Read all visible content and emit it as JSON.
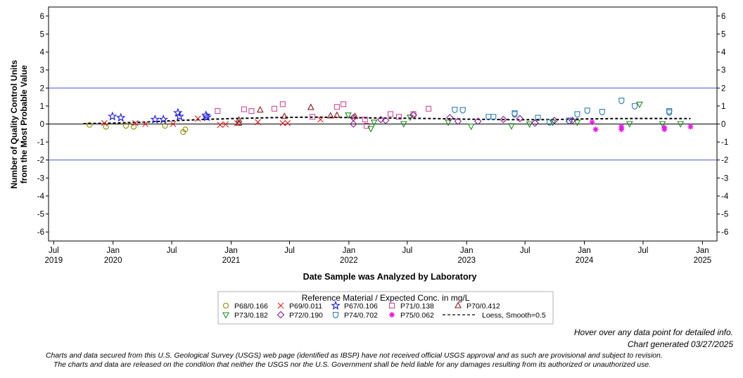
{
  "chart_data": {
    "type": "scatter",
    "ylabel_line1": "Number of Quality Control Units",
    "ylabel_line2": "from the Most Probable Value",
    "xlabel": "Date Sample was Analyzed by Laboratory",
    "ylim": [
      -6.5,
      6.5
    ],
    "yticks": [
      -6,
      -5,
      -4,
      -3,
      -2,
      -1,
      0,
      1,
      2,
      3,
      4,
      5,
      6
    ],
    "xlim": [
      "2019-06-15",
      "2025-02-15"
    ],
    "xticks": [
      {
        "date": "2019-07-01",
        "label": "Jul",
        "year": "2019"
      },
      {
        "date": "2020-01-01",
        "label": "Jan",
        "year": "2020"
      },
      {
        "date": "2020-07-01",
        "label": "Jul",
        "year": ""
      },
      {
        "date": "2021-01-01",
        "label": "Jan",
        "year": "2021"
      },
      {
        "date": "2021-07-01",
        "label": "Jul",
        "year": ""
      },
      {
        "date": "2022-01-01",
        "label": "Jan",
        "year": "2022"
      },
      {
        "date": "2022-07-01",
        "label": "Jul",
        "year": ""
      },
      {
        "date": "2023-01-01",
        "label": "Jan",
        "year": "2023"
      },
      {
        "date": "2023-07-01",
        "label": "Jul",
        "year": ""
      },
      {
        "date": "2024-01-01",
        "label": "Jan",
        "year": "2024"
      },
      {
        "date": "2024-07-01",
        "label": "Jul",
        "year": ""
      },
      {
        "date": "2025-01-01",
        "label": "Jan",
        "year": "2025"
      }
    ],
    "reference_lines": [
      2,
      -2
    ],
    "zero_line": 0,
    "legend_title": "Reference Material / Expected Conc. in mg/L",
    "series": [
      {
        "name": "P68/0.166",
        "marker": "circle",
        "color": "#8B8B00",
        "points": [
          [
            "2019-10-20",
            -0.05
          ],
          [
            "2019-12-10",
            -0.15
          ],
          [
            "2020-02-10",
            -0.1
          ],
          [
            "2020-03-05",
            -0.15
          ],
          [
            "2020-06-10",
            -0.1
          ],
          [
            "2020-08-05",
            -0.45
          ],
          [
            "2020-08-12",
            -0.3
          ]
        ]
      },
      {
        "name": "P69/0.011",
        "marker": "x",
        "color": "#E41A1C",
        "points": [
          [
            "2019-12-05",
            0.05
          ],
          [
            "2020-03-10",
            0.05
          ],
          [
            "2020-04-10",
            0.0
          ],
          [
            "2020-07-05",
            0.0
          ],
          [
            "2020-09-20",
            0.3
          ],
          [
            "2020-11-28",
            -0.05
          ],
          [
            "2020-12-15",
            -0.02
          ],
          [
            "2021-01-20",
            0.05
          ],
          [
            "2021-03-25",
            0.1
          ],
          [
            "2021-06-10",
            0.05
          ],
          [
            "2021-06-25",
            0.05
          ],
          [
            "2021-10-05",
            0.25
          ]
        ]
      },
      {
        "name": "P67/0.106",
        "marker": "star",
        "color": "#1515E6",
        "points": [
          [
            "2019-12-30",
            0.42
          ],
          [
            "2020-01-25",
            0.35
          ],
          [
            "2020-05-10",
            0.25
          ],
          [
            "2020-06-05",
            0.25
          ],
          [
            "2020-07-20",
            0.62
          ],
          [
            "2020-07-25",
            0.42
          ],
          [
            "2020-10-15",
            0.48
          ],
          [
            "2020-10-18",
            0.38
          ]
        ]
      },
      {
        "name": "P71/0.138",
        "marker": "square",
        "color": "#CC4C99",
        "points": [
          [
            "2020-11-20",
            0.72
          ],
          [
            "2021-02-10",
            0.82
          ],
          [
            "2021-03-05",
            0.72
          ],
          [
            "2021-05-15",
            0.85
          ],
          [
            "2021-06-10",
            1.1
          ],
          [
            "2021-09-10",
            0.4
          ],
          [
            "2021-11-25",
            0.95
          ],
          [
            "2021-12-15",
            1.1
          ],
          [
            "2022-02-25",
            -0.1
          ],
          [
            "2022-02-20",
            0.25
          ],
          [
            "2022-05-10",
            0.55
          ],
          [
            "2022-06-05",
            0.4
          ],
          [
            "2022-07-20",
            0.55
          ],
          [
            "2022-09-05",
            0.85
          ]
        ]
      },
      {
        "name": "P70/0.412",
        "marker": "triangle",
        "color": "#8B1A1A",
        "points": [
          [
            "2021-01-25",
            0.05
          ],
          [
            "2021-01-25",
            0.22
          ],
          [
            "2021-04-01",
            0.78
          ],
          [
            "2021-06-15",
            0.42
          ],
          [
            "2021-09-05",
            0.92
          ],
          [
            "2021-11-05",
            0.45
          ],
          [
            "2021-11-25",
            0.48
          ],
          [
            "2022-01-20",
            0.42
          ]
        ]
      },
      {
        "name": "P73/0.182",
        "marker": "tridown",
        "color": "#1E8C1E",
        "points": [
          [
            "2021-12-30",
            0.5
          ],
          [
            "2022-03-10",
            -0.25
          ],
          [
            "2022-03-20",
            0.1
          ],
          [
            "2022-06-20",
            0.02
          ],
          [
            "2022-07-10",
            0.38
          ],
          [
            "2022-11-05",
            0.1
          ],
          [
            "2023-01-15",
            -0.12
          ],
          [
            "2023-05-20",
            -0.1
          ],
          [
            "2023-07-15",
            0.0
          ],
          [
            "2023-09-25",
            0.1
          ],
          [
            "2023-12-10",
            0.1
          ],
          [
            "2024-05-20",
            0.02
          ],
          [
            "2024-06-20",
            1.1
          ],
          [
            "2024-08-30",
            0.02
          ],
          [
            "2024-10-25",
            0.02
          ]
        ]
      },
      {
        "name": "P72/0.190",
        "marker": "diamond",
        "color": "#8B1A8B",
        "points": [
          [
            "2022-01-15",
            0.35
          ],
          [
            "2022-01-15",
            0.0
          ],
          [
            "2022-04-10",
            0.25
          ],
          [
            "2022-04-25",
            0.2
          ],
          [
            "2022-07-20",
            0.5
          ],
          [
            "2022-11-10",
            0.35
          ],
          [
            "2022-12-05",
            0.15
          ],
          [
            "2023-02-05",
            0.15
          ],
          [
            "2023-04-25",
            0.25
          ],
          [
            "2023-06-15",
            0.3
          ],
          [
            "2023-08-01",
            0.05
          ],
          [
            "2023-09-30",
            0.2
          ],
          [
            "2023-11-15",
            0.15
          ],
          [
            "2023-11-25",
            0.2
          ]
        ]
      },
      {
        "name": "P74/0.702",
        "marker": "shield",
        "color": "#2B7BB9",
        "points": [
          [
            "2022-11-25",
            0.8
          ],
          [
            "2022-12-20",
            0.78
          ],
          [
            "2023-03-10",
            0.4
          ],
          [
            "2023-03-25",
            0.4
          ],
          [
            "2023-05-30",
            0.6
          ],
          [
            "2023-05-30",
            0.55
          ],
          [
            "2023-08-10",
            0.35
          ],
          [
            "2023-09-15",
            0.1
          ],
          [
            "2023-11-15",
            0.2
          ],
          [
            "2023-12-10",
            0.55
          ],
          [
            "2024-01-10",
            0.75
          ],
          [
            "2024-02-25",
            0.68
          ],
          [
            "2024-04-25",
            1.3
          ],
          [
            "2024-06-05",
            1.0
          ],
          [
            "2024-09-20",
            0.65
          ],
          [
            "2024-09-20",
            0.72
          ]
        ]
      },
      {
        "name": "P75/0.062",
        "marker": "asterisk",
        "color": "#E619E6",
        "points": [
          [
            "2024-01-25",
            0.1
          ],
          [
            "2024-02-05",
            -0.3
          ],
          [
            "2024-04-25",
            -0.15
          ],
          [
            "2024-04-25",
            -0.3
          ],
          [
            "2024-09-05",
            -0.2
          ],
          [
            "2024-09-05",
            -0.3
          ],
          [
            "2024-11-25",
            -0.15
          ]
        ]
      }
    ],
    "loess": {
      "name": "Loess, Smooth=0.5",
      "points": [
        [
          "2019-10-01",
          0.02
        ],
        [
          "2020-01-01",
          0.05
        ],
        [
          "2020-04-01",
          0.1
        ],
        [
          "2020-07-01",
          0.18
        ],
        [
          "2020-10-01",
          0.25
        ],
        [
          "2021-01-01",
          0.3
        ],
        [
          "2021-04-01",
          0.34
        ],
        [
          "2021-07-01",
          0.37
        ],
        [
          "2021-10-01",
          0.38
        ],
        [
          "2022-01-01",
          0.36
        ],
        [
          "2022-04-01",
          0.33
        ],
        [
          "2022-07-01",
          0.32
        ],
        [
          "2022-10-01",
          0.3
        ],
        [
          "2023-01-01",
          0.27
        ],
        [
          "2023-04-01",
          0.25
        ],
        [
          "2023-07-01",
          0.24
        ],
        [
          "2023-10-01",
          0.25
        ],
        [
          "2024-01-01",
          0.28
        ],
        [
          "2024-04-01",
          0.3
        ],
        [
          "2024-07-01",
          0.31
        ],
        [
          "2024-11-25",
          0.3
        ]
      ]
    }
  },
  "footer": {
    "hover_note": "Hover over any data point for detailed info.",
    "generated": "Chart generated 03/27/2025",
    "disclaimer1": "Charts and data secured from this U.S. Geological Survey (USGS) web page (identified as IBSP) have not received official USGS approval and as such are provisional and subject to revision.",
    "disclaimer2": "The charts and data are released on the condition that neither the USGS nor the U.S. Government shall be held liable for any damages resulting from its authorized or unauthorized use."
  }
}
